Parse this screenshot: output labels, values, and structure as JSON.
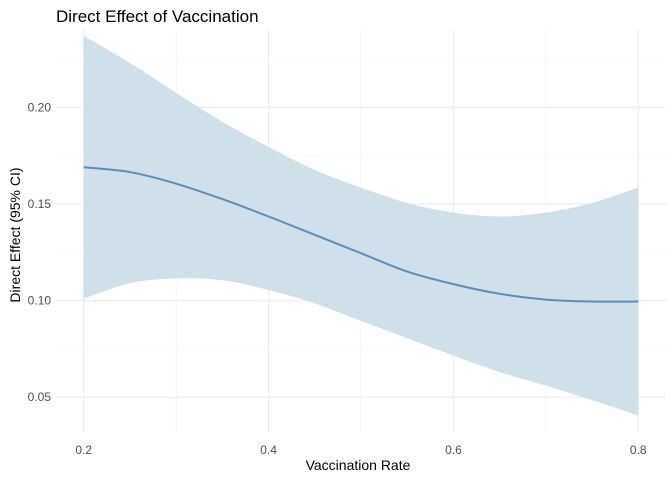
{
  "chart_data": {
    "type": "line",
    "title": "Direct Effect of Vaccination",
    "xlabel": "Vaccination Rate",
    "ylabel": "Direct Effect (95% CI)",
    "xlim": [
      0.17,
      0.83
    ],
    "ylim": [
      0.032,
      0.24
    ],
    "x_ticks": [
      0.2,
      0.4,
      0.6,
      0.8
    ],
    "x_tick_labels": [
      "0.2",
      "0.4",
      "0.6",
      "0.8"
    ],
    "y_ticks": [
      0.05,
      0.1,
      0.15,
      0.2
    ],
    "y_tick_labels": [
      "0.05",
      "0.10",
      "0.15",
      "0.20"
    ],
    "grid": true,
    "series": [
      {
        "x": [
          0.2,
          0.25,
          0.3,
          0.35,
          0.4,
          0.45,
          0.5,
          0.55,
          0.6,
          0.65,
          0.7,
          0.75,
          0.8
        ],
        "values": [
          0.169,
          0.1665,
          0.1605,
          0.1525,
          0.1435,
          0.134,
          0.1245,
          0.115,
          0.1085,
          0.1035,
          0.1005,
          0.0995,
          0.0995
        ],
        "lower": [
          0.101,
          0.109,
          0.1115,
          0.1105,
          0.1055,
          0.0985,
          0.0895,
          0.0805,
          0.0715,
          0.063,
          0.056,
          0.0485,
          0.0405
        ],
        "upper": [
          0.237,
          0.223,
          0.2075,
          0.1925,
          0.1795,
          0.1675,
          0.1585,
          0.1505,
          0.1455,
          0.1435,
          0.1455,
          0.1505,
          0.1585
        ]
      }
    ],
    "colors": {
      "line": "#5b8db8",
      "ribbon": "#cfe0eb",
      "grid": "#ebebeb"
    }
  }
}
